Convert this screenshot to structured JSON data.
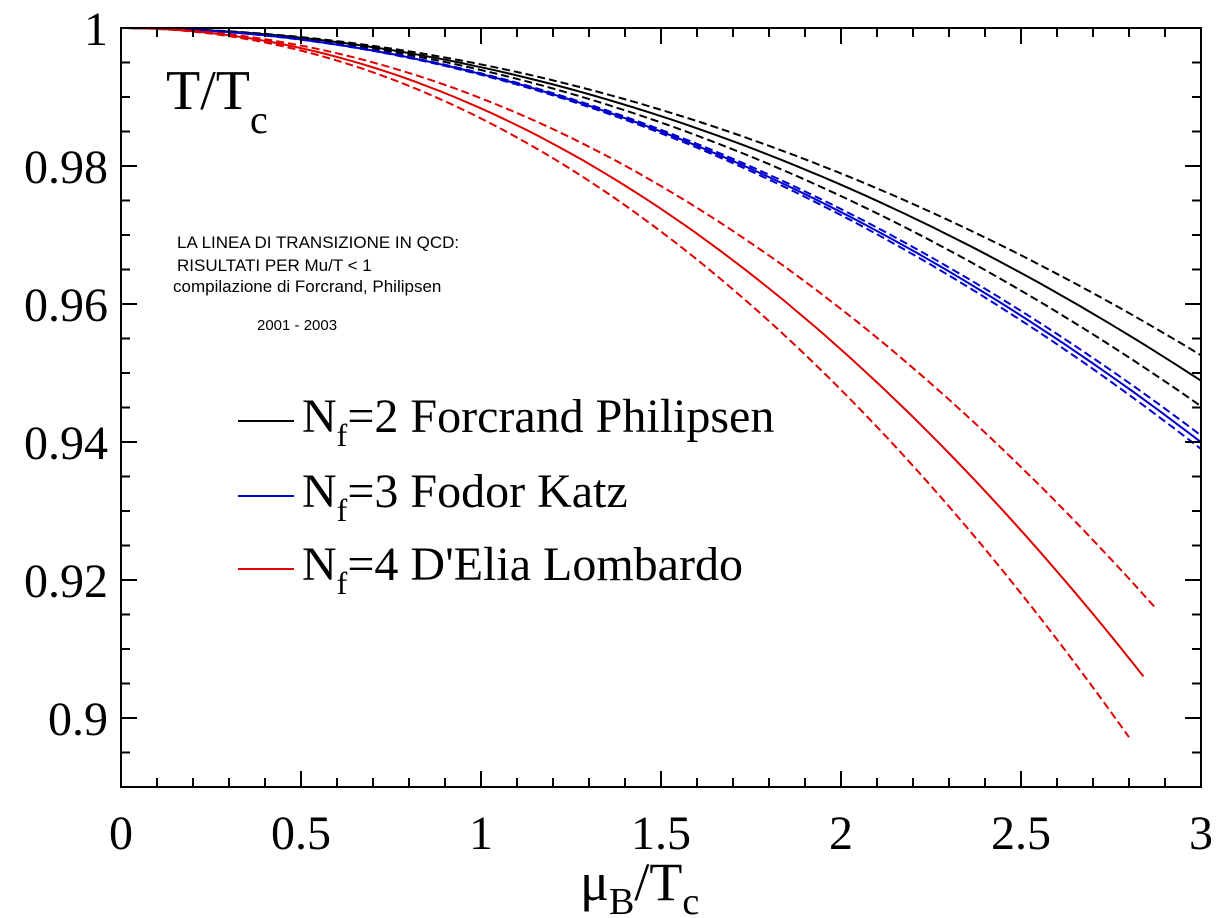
{
  "chart_data": {
    "type": "line",
    "title_main": "T/T",
    "title_sub": "c",
    "xlabel_main": "μ",
    "xlabel_sub1": "B",
    "xlabel_mid": "/T",
    "xlabel_sub2": "c",
    "xlim": [
      0,
      3
    ],
    "ylim": [
      0.89,
      1.0
    ],
    "x_ticks": [
      {
        "value": 0,
        "label": "0"
      },
      {
        "value": 0.5,
        "label": "0.5"
      },
      {
        "value": 1,
        "label": "1"
      },
      {
        "value": 1.5,
        "label": "1.5"
      },
      {
        "value": 2,
        "label": "2"
      },
      {
        "value": 2.5,
        "label": "2.5"
      },
      {
        "value": 3,
        "label": "3"
      }
    ],
    "y_ticks": [
      {
        "value": 0.9,
        "label": "0.9"
      },
      {
        "value": 0.92,
        "label": "0.92"
      },
      {
        "value": 0.94,
        "label": "0.94"
      },
      {
        "value": 0.96,
        "label": "0.96"
      },
      {
        "value": 0.98,
        "label": "0.98"
      },
      {
        "value": 1.0,
        "label": "1"
      }
    ],
    "annotation_lines": [
      "LA LINEA DI TRANSIZIONE IN QCD:",
      "RISULTATI PER Mu/T < 1",
      "compilazione di Forcrand, Philipsen",
      "2001 - 2003"
    ],
    "legend_position": "center-left",
    "grid": false,
    "series": [
      {
        "legend_N": "N",
        "legend_sub": "f",
        "legend_rest": "=2 Forcrand Philipsen",
        "color": "#000000",
        "x_max": 3.0,
        "a": 0.00568,
        "a_lo": 0.00527,
        "a_hi": 0.00609,
        "band_x_max": 3.0
      },
      {
        "legend_N": "N",
        "legend_sub": "f",
        "legend_rest": "=3 Fodor Katz",
        "color": "#0000cc",
        "x_max": 3.0,
        "a": 0.00667,
        "a_lo": 0.00656,
        "a_hi": 0.00678,
        "band_x_max": 3.0
      },
      {
        "legend_N": "N",
        "legend_sub": "f",
        "legend_rest": "=4 D'Elia Lombardo",
        "color": "#e00000",
        "x_max": 2.84,
        "a": 0.01165,
        "a_lo": 0.01018,
        "a_hi": 0.01311,
        "band_x_max": 2.87,
        "band_x_max_hi": 2.8
      }
    ]
  }
}
